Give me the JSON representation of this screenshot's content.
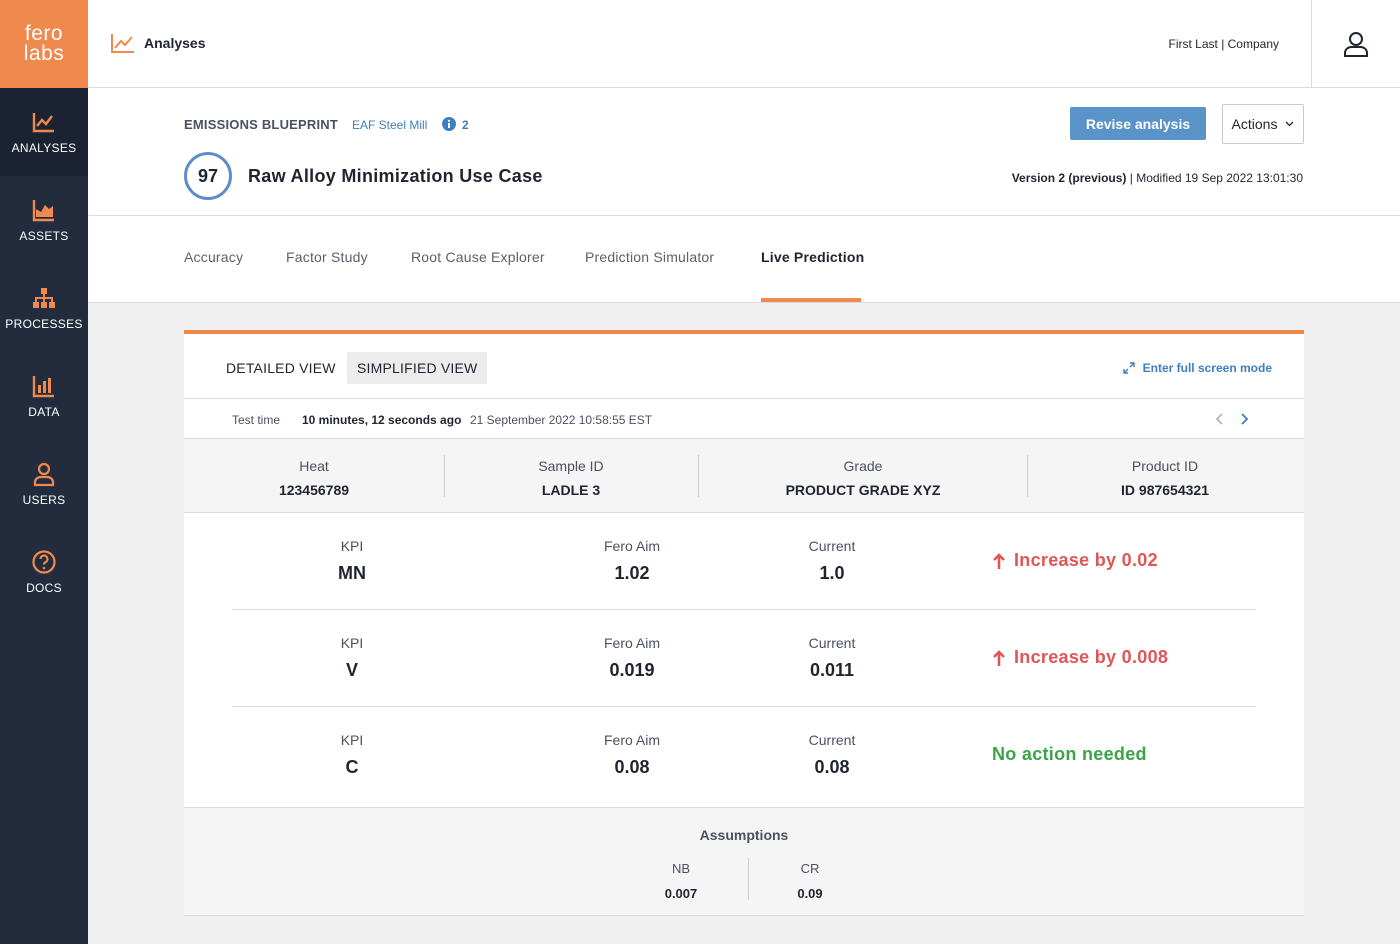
{
  "brand": {
    "logo_line1": "fero",
    "logo_line2": "labs"
  },
  "sidebar": {
    "items": [
      {
        "label": "ANALYSES",
        "icon": "analyses-chart-icon",
        "active": true
      },
      {
        "label": "ASSETS",
        "icon": "assets-area-chart-icon"
      },
      {
        "label": "PROCESSES",
        "icon": "processes-hierarchy-icon"
      },
      {
        "label": "DATA",
        "icon": "data-bar-chart-icon"
      },
      {
        "label": "USERS",
        "icon": "user-icon"
      },
      {
        "label": "DOCS",
        "icon": "question-circle-icon"
      }
    ]
  },
  "header": {
    "section": "Analyses",
    "user": "First Last | Company"
  },
  "analysis": {
    "blueprint": "EMISSIONS BLUEPRINT",
    "asset": "EAF Steel Mill",
    "info_count": "2",
    "score": "97",
    "title": "Raw Alloy Minimization Use Case",
    "revise_label": "Revise analysis",
    "actions_label": "Actions",
    "version_bold": "Version 2 (previous)",
    "version_rest": " | Modified 19 Sep 2022 13:01:30"
  },
  "tabs": [
    "Accuracy",
    "Factor Study",
    "Root Cause Explorer",
    "Prediction Simulator",
    "Live Prediction"
  ],
  "active_tab": "Live Prediction",
  "views": {
    "detailed": "DETAILED VIEW",
    "simplified": "SIMPLIFIED VIEW",
    "selected": "SIMPLIFIED VIEW",
    "fullscreen": "Enter full screen mode"
  },
  "test_time": {
    "label": "Test time",
    "ago": "10 minutes, 12 seconds ago",
    "stamp": "21 September 2022 10:58:55 EST"
  },
  "meta": [
    {
      "label": "Heat",
      "value": "123456789"
    },
    {
      "label": "Sample ID",
      "value": "LADLE 3"
    },
    {
      "label": "Grade",
      "value": "PRODUCT GRADE XYZ"
    },
    {
      "label": "Product ID",
      "value": "ID 987654321"
    }
  ],
  "kpis": [
    {
      "kpi_label": "KPI",
      "kpi": "MN",
      "aim_label": "Fero Aim",
      "aim": "1.02",
      "current_label": "Current",
      "current": "1.0",
      "recommendation": "Increase by 0.02",
      "status": "increase"
    },
    {
      "kpi_label": "KPI",
      "kpi": "V",
      "aim_label": "Fero Aim",
      "aim": "0.019",
      "current_label": "Current",
      "current": "0.011",
      "recommendation": "Increase by 0.008",
      "status": "increase"
    },
    {
      "kpi_label": "KPI",
      "kpi": "C",
      "aim_label": "Fero Aim",
      "aim": "0.08",
      "current_label": "Current",
      "current": "0.08",
      "recommendation": "No action needed",
      "status": "ok"
    }
  ],
  "assumptions": {
    "title": "Assumptions",
    "items": [
      {
        "label": "NB",
        "value": "0.007"
      },
      {
        "label": "CR",
        "value": "0.09"
      }
    ]
  },
  "colors": {
    "accent": "#f0894d",
    "sidebar": "#232c3d",
    "link": "#3d7fc1",
    "increase": "#e05656",
    "ok": "#3aa447"
  }
}
